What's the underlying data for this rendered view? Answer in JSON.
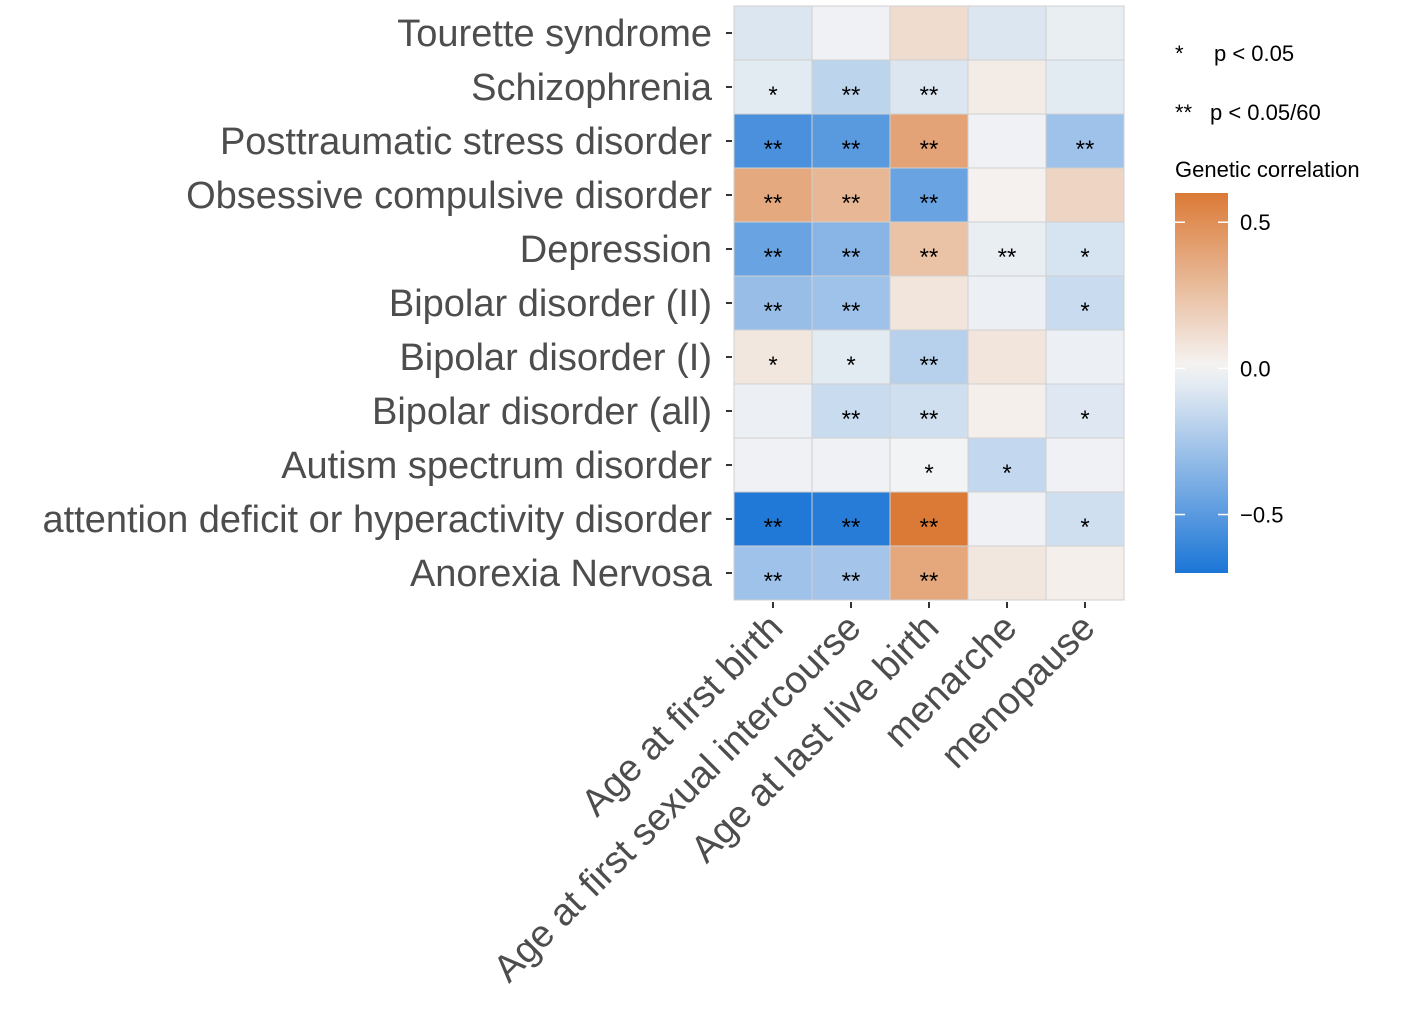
{
  "chart_data": {
    "type": "heatmap",
    "title": "",
    "xlabel": "",
    "ylabel": "",
    "x_categories": [
      "Age at first birth",
      "Age at first sexual intercourse",
      "Age at last live birth",
      "menarche",
      "menopause"
    ],
    "y_categories": [
      "Tourette syndrome",
      "Schizophrenia",
      "Posttraumatic stress disorder",
      "Obsessive compulsive disorder",
      "Depression",
      "Bipolar disorder (II)",
      "Bipolar disorder (I)",
      "Bipolar disorder (all)",
      "Autism spectrum disorder",
      "attention deficit or hyperactivity disorder",
      "Anorexia Nervosa"
    ],
    "values": [
      [
        -0.08,
        -0.02,
        0.12,
        -0.08,
        -0.04
      ],
      [
        -0.06,
        -0.18,
        -0.08,
        0.05,
        -0.06
      ],
      [
        -0.55,
        -0.5,
        0.4,
        -0.02,
        -0.28
      ],
      [
        0.37,
        0.3,
        -0.45,
        0.02,
        0.16
      ],
      [
        -0.45,
        -0.35,
        0.25,
        -0.04,
        -0.1
      ],
      [
        -0.3,
        -0.28,
        0.08,
        -0.03,
        -0.14
      ],
      [
        0.07,
        -0.06,
        -0.2,
        0.08,
        -0.03
      ],
      [
        -0.03,
        -0.14,
        -0.12,
        0.03,
        -0.07
      ],
      [
        -0.02,
        -0.02,
        -0.01,
        -0.16,
        -0.02
      ],
      [
        -0.68,
        -0.66,
        0.6,
        -0.02,
        -0.12
      ],
      [
        -0.28,
        -0.26,
        0.38,
        0.07,
        0.03
      ]
    ],
    "significance": [
      [
        "",
        "",
        "",
        "",
        ""
      ],
      [
        "*",
        "**",
        "**",
        "",
        ""
      ],
      [
        "**",
        "**",
        "**",
        "",
        "**"
      ],
      [
        "**",
        "**",
        "**",
        "",
        ""
      ],
      [
        "**",
        "**",
        "**",
        "**",
        "*"
      ],
      [
        "**",
        "**",
        "",
        "",
        "*"
      ],
      [
        "*",
        "*",
        "**",
        "",
        ""
      ],
      [
        "",
        "**",
        "**",
        "",
        "*"
      ],
      [
        "",
        "",
        "*",
        "*",
        ""
      ],
      [
        "**",
        "**",
        "**",
        "",
        "*"
      ],
      [
        "**",
        "**",
        "**",
        "",
        ""
      ]
    ],
    "legend": {
      "sig_1_symbol": "*",
      "sig_1_text": "p < 0.05",
      "sig_2_symbol": "**",
      "sig_2_text": "p < 0.05/60",
      "title": "Genetic correlation",
      "ticks": [
        0.5,
        0.0,
        -0.5
      ],
      "tick_labels": [
        "0.5",
        "0.0",
        "−0.5"
      ],
      "range": [
        -0.7,
        0.6
      ]
    },
    "colors": {
      "low": "#1b75d6",
      "mid": "#f5f5f5",
      "high": "#db7a36",
      "panel": "#ebebeb",
      "grid_line": "#d0d0d0"
    },
    "grid": true,
    "legend_position": "right"
  }
}
